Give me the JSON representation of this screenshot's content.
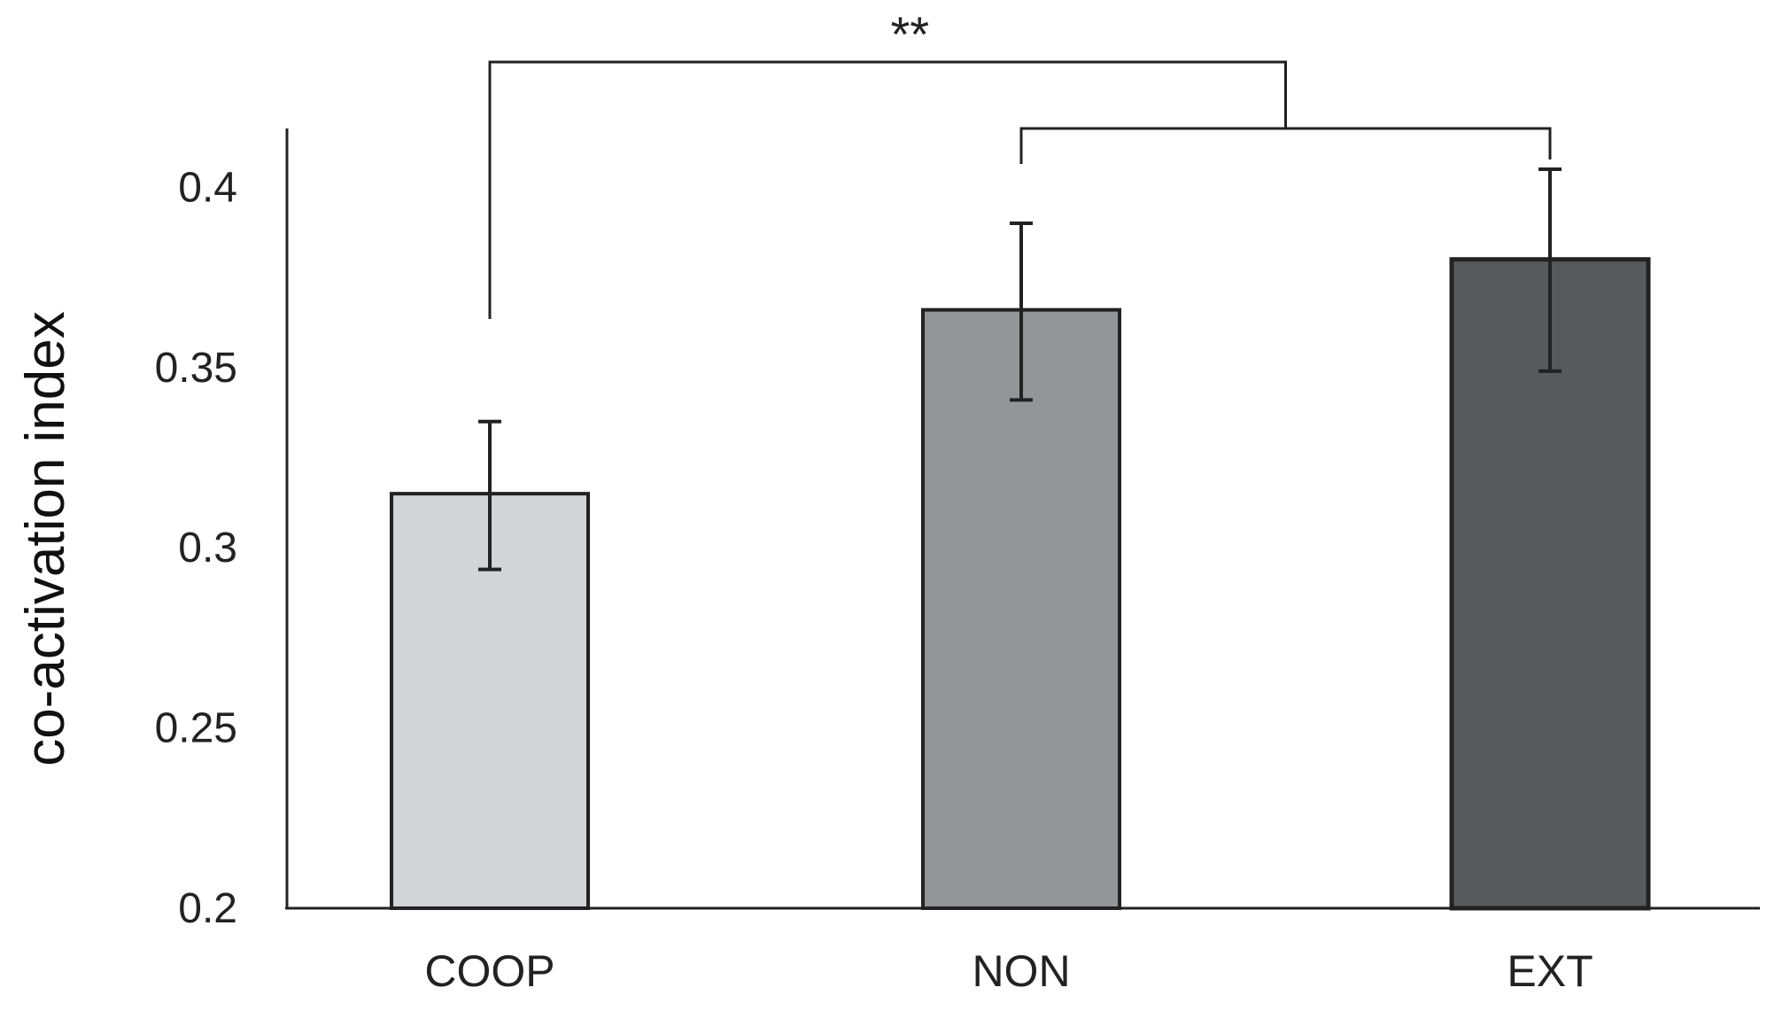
{
  "chart_data": {
    "type": "bar",
    "categories": [
      "COOP",
      "NON",
      "EXT"
    ],
    "values": [
      0.315,
      0.366,
      0.38
    ],
    "error_bars": [
      {
        "low": 0.294,
        "high": 0.335
      },
      {
        "low": 0.341,
        "high": 0.39
      },
      {
        "low": 0.349,
        "high": 0.405
      }
    ],
    "colors": [
      "#d2d4d6",
      "#939598",
      "#58595b"
    ],
    "edge_color": "#222222",
    "ylabel": "co-activation index",
    "xlabel": "",
    "title": "",
    "ylim": [
      0.2,
      0.42
    ],
    "yticks": [
      "0.2",
      "0.25",
      "0.3",
      "0.35",
      "0.4"
    ],
    "significance": {
      "label": "**",
      "compare": "COOP vs NON+EXT"
    }
  }
}
